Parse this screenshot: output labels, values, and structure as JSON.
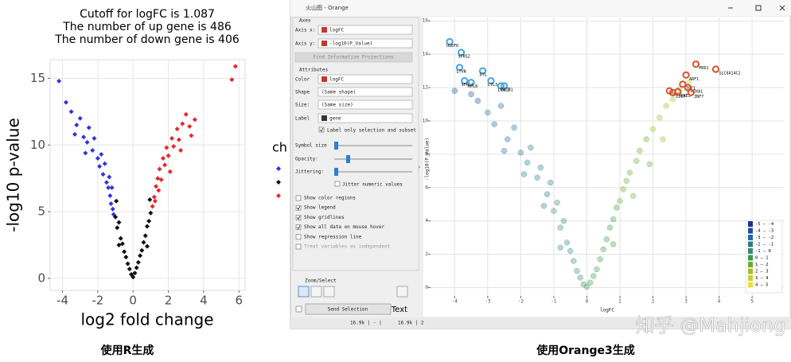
{
  "chart_data": [
    {
      "type": "scatter",
      "title": [
        "Cutoff for logFC is 1.087",
        "The number of up gene is 486",
        "The number of down gene is 406"
      ],
      "x_label": "log2 fold change",
      "y_label": "-log10 p-value",
      "legend_title": "ch",
      "xlim": [
        -4.7,
        6.35
      ],
      "xticks": [
        -4,
        -2,
        0,
        2,
        4,
        6
      ],
      "ylim": [
        -0.9,
        16.4
      ],
      "yticks": [
        0,
        5,
        10,
        15
      ],
      "grid": true,
      "series": [
        {
          "color": "#3333e0",
          "x": [
            -4.2,
            -3.8,
            -3.5,
            -3.3,
            -3.2,
            -3.0,
            -2.8,
            -2.7,
            -2.6,
            -2.5,
            -2.3,
            -2.2,
            -2.0,
            -1.9,
            -1.8,
            -1.7,
            -1.6,
            -1.5,
            -1.4,
            -1.35,
            -1.3,
            -1.25,
            -1.2,
            -1.15,
            -1.1
          ],
          "y": [
            14.8,
            13.2,
            12.5,
            10.8,
            11.5,
            12.0,
            10.6,
            9.4,
            10.2,
            11.3,
            9.6,
            10.5,
            9.0,
            8.4,
            9.3,
            7.8,
            8.6,
            7.2,
            6.8,
            7.6,
            6.2,
            5.6,
            6.8,
            5.2,
            4.8
          ]
        },
        {
          "color": "#111111",
          "x": [
            -1.0,
            -0.95,
            -0.9,
            -0.8,
            -0.8,
            -0.7,
            -0.6,
            -0.5,
            -0.4,
            -0.3,
            -0.2,
            -0.1,
            0,
            0.1,
            0.2,
            0.3,
            0.4,
            0.5,
            0.6,
            0.7,
            0.8,
            0.8,
            0.9,
            0.95,
            1.0
          ],
          "y": [
            4.6,
            5.8,
            3.8,
            4.2,
            2.5,
            3.0,
            2.6,
            2.0,
            1.6,
            1.1,
            0.7,
            0.3,
            0.1,
            0.4,
            0.8,
            1.2,
            1.7,
            2.1,
            2.7,
            3.2,
            3.9,
            2.4,
            4.3,
            5.9,
            4.9
          ]
        },
        {
          "color": "#e8262b",
          "x": [
            1.1,
            1.2,
            1.25,
            1.3,
            1.4,
            1.45,
            1.5,
            1.6,
            1.7,
            1.8,
            1.9,
            2.0,
            2.1,
            2.2,
            2.3,
            2.5,
            2.6,
            2.7,
            2.8,
            3.0,
            3.2,
            3.3,
            3.5,
            5.6,
            5.8
          ],
          "y": [
            5.4,
            6.1,
            5.8,
            6.9,
            7.5,
            6.6,
            8.2,
            7.4,
            9.0,
            8.5,
            9.8,
            9.2,
            8.0,
            10.5,
            9.9,
            11.2,
            10.4,
            9.6,
            11.6,
            12.3,
            11.4,
            10.7,
            11.9,
            14.9,
            15.9
          ]
        }
      ]
    },
    {
      "type": "scatter",
      "x_label": "logFC",
      "y_label": "-log10(P_Value)",
      "xlim": [
        -4.73,
        5.96
      ],
      "xticks": [
        -4,
        -3,
        -2,
        -1,
        0,
        1,
        2,
        3,
        4,
        5
      ],
      "ylim": [
        -0.5,
        16.2
      ],
      "yticks": [
        0,
        2,
        4,
        6,
        8,
        10,
        12,
        14,
        16
      ],
      "grid": true,
      "bin_edges": [
        -5,
        -4,
        -3,
        -2,
        -1,
        0,
        1,
        2,
        3,
        4,
        5
      ],
      "bin_colors": [
        "#1a2f9c",
        "#1f4aa0",
        "#1f6aa3",
        "#287a8c",
        "#3a8a78",
        "#3f9a4a",
        "#6aab34",
        "#9ec02b",
        "#cbd12a",
        "#e8e23a"
      ],
      "legend_labels": [
        "-5 – -4",
        "-4 – -3",
        "-3 – -2",
        "-2 – -1",
        "-1 – 0",
        "0 – 1",
        "1 – 2",
        "2 – 3",
        "3 – 4",
        "4 – 5"
      ],
      "legend_position": "bottom-right",
      "series": [
        {
          "x": [
            -3.0,
            -2.8,
            -2.6,
            -2.4,
            -2.2,
            -2.0,
            -1.8,
            -1.7,
            -1.5,
            -1.4,
            -1.2,
            -1.1,
            -1.0,
            -0.9,
            -0.8,
            -0.7,
            -0.6,
            -0.5,
            -0.4,
            -0.3,
            -0.2,
            -0.1,
            0,
            0.1,
            0.2,
            0.3,
            0.4,
            0.5,
            0.6,
            0.7,
            0.8,
            0.9,
            1.0,
            1.1,
            1.2,
            1.3,
            1.5,
            1.6,
            1.8,
            2.0,
            2.2,
            2.4,
            2.6,
            2.8,
            1.4,
            -1.3,
            -3.5,
            -4.0,
            -3.3,
            3.1,
            1.9,
            -1.9,
            -2.5,
            2.3,
            -0.8,
            0.8
          ],
          "y": [
            10.5,
            9.8,
            10.9,
            8.9,
            9.6,
            8.1,
            7.5,
            8.4,
            6.6,
            7.2,
            5.6,
            6.3,
            4.6,
            5.1,
            3.6,
            4.0,
            2.7,
            2.2,
            1.6,
            1.0,
            0.6,
            0.2,
            0.05,
            0.3,
            0.7,
            1.1,
            1.7,
            2.3,
            2.9,
            3.6,
            4.1,
            4.8,
            5.2,
            5.9,
            6.4,
            6.9,
            7.6,
            8.2,
            8.9,
            9.5,
            10.2,
            10.9,
            11.3,
            11.9,
            5.5,
            4.9,
            11.6,
            11.8,
            11.2,
            12.3,
            7.4,
            6.8,
            8.2,
            8.9,
            2.4,
            2.6
          ]
        },
        {
          "color": "#45a6e0",
          "x": [
            -4.15,
            -3.8,
            -3.85,
            -3.15,
            -3.7,
            -3.5,
            -2.9,
            -2.6,
            -2.5
          ],
          "y": [
            14.75,
            14.1,
            13.2,
            13.0,
            12.4,
            12.3,
            12.4,
            12.1,
            12.1
          ],
          "labels": [
            "UGEF6",
            "SFRS2",
            "LTVN",
            "DTL",
            "SFRS4",
            "RPL8",
            "LTL3",
            "LRRC2",
            "ZBTB1"
          ]
        },
        {
          "color": "#d9532c",
          "x": [
            3.3,
            3.9,
            3.0,
            2.9,
            2.5,
            2.6,
            2.75,
            3.05,
            3.15
          ],
          "y": [
            13.4,
            13.1,
            12.75,
            12.2,
            11.8,
            11.7,
            11.75,
            12.0,
            11.7
          ],
          "labels": [
            "MXD1",
            "SLC6A14C2",
            "ARF1",
            "TCF1",
            "RRN1",
            "CDC7",
            "SRE3",
            "HOXA1",
            "ZNF7"
          ]
        }
      ]
    }
  ],
  "ui": {
    "window_title": "火山图 - Orange",
    "axes_box": "Axes",
    "axis_x": "Axis x:",
    "axis_x_value": "logFC",
    "axis_y": "Axis y:",
    "axis_y_value": "-log10(P_Value)",
    "find_button": "Find Informative Projections",
    "attributes_box": "Attributes",
    "color": "Color",
    "color_value": "logFC",
    "shape": "Shape",
    "shape_value": "(Same shape)",
    "size": "Size:",
    "size_value": "(Same size)",
    "label": "Label",
    "label_value": "gene",
    "label_only": "Label only selection and subset",
    "symbol_size": "Symbol size",
    "opacity": "Opacity:",
    "jittering": "Jittering:",
    "jitter_numeric": "Jitter numeric values",
    "checks": [
      "Show color regions",
      "Show legend",
      "Show gridlines",
      "Show all data on mouse hover",
      "Show regression line",
      "Treat variables as independent"
    ],
    "zoom_select": "Zoom/Select",
    "send_selection": "Send Selection",
    "text_overlay": "Text",
    "status_left": "16.9k | - |",
    "status_right": "16.9k | 2"
  },
  "captions": [
    "使用R生成",
    "使用Orange3生成"
  ],
  "watermark": "知乎 @Mahjiong"
}
